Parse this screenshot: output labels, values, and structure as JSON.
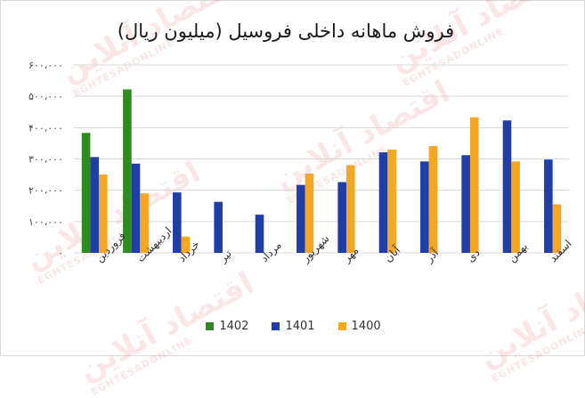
{
  "chart_data": {
    "type": "bar",
    "title": "فروش ماهانه داخلی فروسیل (میلیون ریال)",
    "categories": [
      "فروردین",
      "اردیبهشت",
      "خرداد",
      "تیر",
      "مرداد",
      "شهریور",
      "مهر",
      "آبان",
      "آذر",
      "دی",
      "بهمن",
      "اسفند"
    ],
    "series": [
      {
        "name": "1402",
        "color": "#2e8b1f",
        "values": [
          383000,
          522000,
          null,
          null,
          null,
          null,
          null,
          null,
          null,
          null,
          null,
          null
        ]
      },
      {
        "name": "1401",
        "color": "#1f3fa6",
        "values": [
          306000,
          285000,
          193000,
          163000,
          122000,
          217000,
          226000,
          321000,
          292000,
          312000,
          423000,
          298000
        ]
      },
      {
        "name": "1400",
        "color": "#f5a623",
        "values": [
          250000,
          190000,
          52000,
          null,
          null,
          253000,
          280000,
          330000,
          341000,
          433000,
          292000,
          155000
        ]
      }
    ],
    "ylim": [
      0,
      600000
    ],
    "yticks": [
      0,
      100000,
      200000,
      300000,
      400000,
      500000,
      600000
    ],
    "ytick_labels": [
      "۰",
      "۱۰۰،۰۰۰",
      "۲۰۰،۰۰۰",
      "۳۰۰،۰۰۰",
      "۴۰۰،۰۰۰",
      "۵۰۰،۰۰۰",
      "۶۰۰،۰۰۰"
    ],
    "xlabel": "",
    "ylabel": "",
    "grid": true,
    "legend_position": "bottom"
  },
  "watermark": {
    "text": "اقتصاد آنلاین",
    "subtext": "EGHTESADONLINE",
    "color": "#e03a3a"
  }
}
